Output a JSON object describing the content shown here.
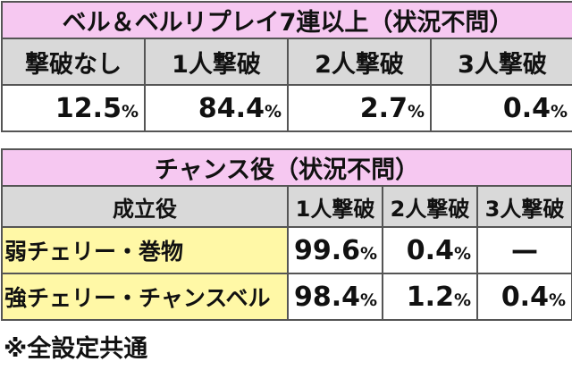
{
  "table1": {
    "title": "ベル＆ベルリプレイ7連以上（状況不問）",
    "header": [
      "撃破なし",
      "1人撃破",
      "2人撃破",
      "3人撃破"
    ],
    "values": [
      {
        "number": "12.5",
        "unit": "%"
      },
      {
        "number": "84.4",
        "unit": "%"
      },
      {
        "number": "2.7",
        "unit": "%"
      },
      {
        "number": "0.4",
        "unit": "%"
      }
    ]
  },
  "table2": {
    "title": "チャンス役（状況不問）",
    "header": [
      "成立役",
      "1人撃破",
      "2人撃破",
      "3人撃破"
    ],
    "rows": [
      {
        "label": "弱チェリー・巻物",
        "cells": [
          {
            "number": "99.6",
            "unit": "%"
          },
          {
            "number": "0.4",
            "unit": "%"
          },
          {
            "number": "—"
          }
        ]
      },
      {
        "label": "強チェリー・チャンスベル",
        "cells": [
          {
            "number": "98.4",
            "unit": "%"
          },
          {
            "number": "1.2",
            "unit": "%"
          },
          {
            "number": "0.4",
            "unit": "%"
          }
        ]
      }
    ]
  },
  "footnote": "※全設定共通"
}
